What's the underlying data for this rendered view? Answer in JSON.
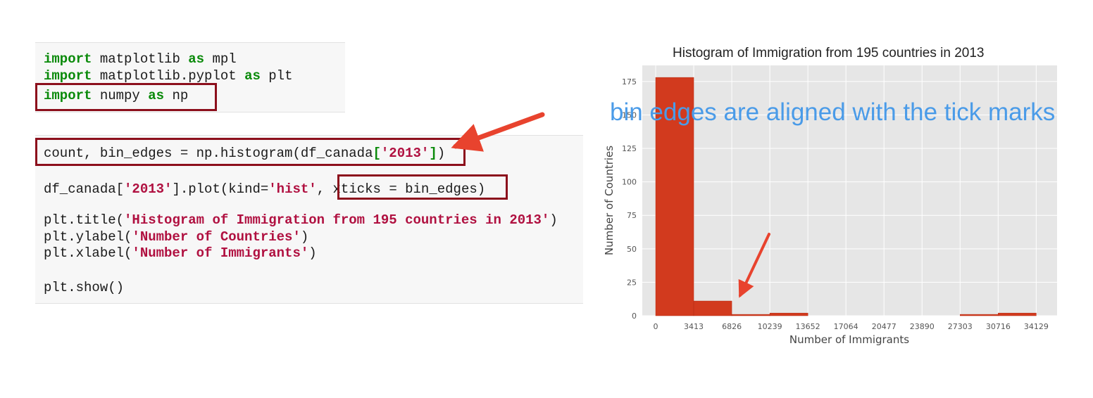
{
  "code": {
    "cell1": {
      "line1": {
        "kw1": "import",
        "t1": " matplotlib ",
        "kw2": "as",
        "t2": " mpl"
      },
      "line2": {
        "kw1": "import",
        "t1": " matplotlib.pyplot ",
        "kw2": "as",
        "t2": " plt"
      },
      "line3": {
        "kw1": "import",
        "t1": " numpy ",
        "kw2": "as",
        "t2": " np"
      }
    },
    "cell2": {
      "line1": {
        "t1": "count, bin_edges = np.histogram(df_canada",
        "b1": "[",
        "s1": "'2013'",
        "b2": "]",
        "t2": ")"
      },
      "line2": {
        "t1": "df_canada[",
        "s1": "'2013'",
        "t2": "].plot(kind=",
        "s2": "'hist'",
        "t3": ", ",
        "t4": "xticks = bin_edges)"
      },
      "line3": {
        "t1": "plt.title(",
        "s1": "'Histogram of Immigration from 195 countries in 2013'",
        "t2": ")"
      },
      "line4": {
        "t1": "plt.ylabel(",
        "s1": "'Number of Countries'",
        "t2": ")"
      },
      "line5": {
        "t1": "plt.xlabel(",
        "s1": "'Number of Immigrants'",
        "t2": ")"
      },
      "line6": "plt.show()"
    }
  },
  "annotation": "bin edges are aligned with the tick marks",
  "colors": {
    "bar": "#d23a1e",
    "plot_bg": "#e6e6e6",
    "arrow": "#e8432e",
    "highlight_box": "#8c0f1c",
    "annotation": "#4a9be8"
  },
  "chart_data": {
    "type": "bar",
    "title": "Histogram of Immigration from 195 countries in 2013",
    "xlabel": "Number of Immigrants",
    "ylabel": "Number of Countries",
    "bin_edges": [
      0,
      3413,
      6826,
      10239,
      13652,
      17064,
      20477,
      23890,
      27303,
      30716,
      34129
    ],
    "x_tick_labels": [
      "0",
      "3413",
      "6826",
      "10239",
      "13652",
      "17064",
      "20477",
      "23890",
      "27303",
      "30716",
      "34129"
    ],
    "values": [
      178,
      11,
      1,
      2,
      0,
      0,
      0,
      0,
      1,
      2
    ],
    "y_ticks": [
      0,
      25,
      50,
      75,
      100,
      125,
      150,
      175
    ],
    "xlim": [
      -1200,
      36000
    ],
    "ylim": [
      0,
      187
    ],
    "grid": true
  }
}
